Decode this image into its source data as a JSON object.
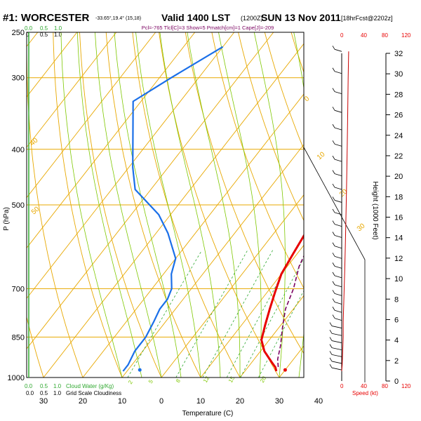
{
  "header": {
    "station": "#1: WORCESTER",
    "coords": "-33.65°,19.4° (15,18)",
    "valid": "Valid 1400 LST",
    "utc": "(1200Z)",
    "date": "SUN 13 Nov 2011",
    "run": "[18hrFcst@2202z]",
    "indices": "Pcl=-765 Tlcl[C]=3 Show=5 Pmatch[cm]=1 Cape[J]=-209"
  },
  "colors": {
    "isobar": "#e8a800",
    "dry_adiabat": "#e8a800",
    "moist_adiabat": "#7ec800",
    "mixing_ratio": "#2fa82f",
    "temperature": "#e80000",
    "dewpoint": "#1a6fe8",
    "parcel": "#7a0060",
    "wind": "#000000",
    "speed": "#c80000",
    "cloud": "#2fa82f"
  },
  "chart_data": {
    "type": "line",
    "title": "#1: WORCESTER",
    "xlabel": "Temperature (C)",
    "ylabel": "P (hPa)",
    "y2label": "Height (1000 Feet)",
    "xlim": [
      -40,
      40
    ],
    "ylim": [
      1000,
      250
    ],
    "yscale": "log",
    "grid": true,
    "pressure_ticks": [
      250,
      300,
      400,
      500,
      700,
      850,
      1000
    ],
    "temp_ticks": [
      30,
      20,
      10,
      0,
      10,
      20,
      30,
      40
    ],
    "temp_tick_values": [
      -30,
      -20,
      -10,
      0,
      10,
      20,
      30,
      40
    ],
    "height_ticks": [
      0,
      2,
      4,
      6,
      8,
      10,
      12,
      14,
      16,
      18,
      20,
      22,
      24,
      26,
      28,
      30,
      32
    ],
    "cloud_scale_top": [
      "0.0",
      "0.5",
      "1.0"
    ],
    "cloud_scale_labels": [
      "0.0",
      "0.5",
      "1.0",
      "Cloud Water (g/Kg)"
    ],
    "cloud_scale_top2": [
      "0",
      "0.5",
      "1.0"
    ],
    "grid_cloud_labels": [
      "0.0",
      "0.5",
      "1.0",
      "Grid Scale Cloudiness"
    ],
    "speed_ticks_top": [
      "0",
      "40",
      "80",
      "120"
    ],
    "speed_ticks_bottom": [
      "0",
      "40",
      "80",
      "120"
    ],
    "speed_label": "Speed (kt)",
    "dry_adiabat_labels": [
      "0",
      "10",
      "20",
      "30",
      "40",
      "50"
    ],
    "mixing_ratio_labels": [
      "2",
      "5",
      "8",
      "12",
      "15",
      "20"
    ],
    "series": [
      {
        "name": "Temperature",
        "points": [
          [
            265,
            16
          ],
          [
            283,
            17
          ],
          [
            310,
            18
          ],
          [
            350,
            18
          ],
          [
            400,
            15
          ],
          [
            450,
            12
          ],
          [
            500,
            9
          ],
          [
            560,
            8
          ],
          [
            610,
            9
          ],
          [
            660,
            10
          ],
          [
            710,
            12
          ],
          [
            760,
            14
          ],
          [
            810,
            16
          ],
          [
            860,
            18
          ],
          [
            900,
            21
          ],
          [
            940,
            25
          ],
          [
            960,
            27
          ],
          [
            975,
            28
          ]
        ]
      },
      {
        "name": "Dewpoint",
        "points": [
          [
            265,
            -50
          ],
          [
            300,
            -57
          ],
          [
            330,
            -62
          ],
          [
            430,
            -49
          ],
          [
            470,
            -44
          ],
          [
            520,
            -33
          ],
          [
            560,
            -27
          ],
          [
            620,
            -20
          ],
          [
            660,
            -18
          ],
          [
            700,
            -15
          ],
          [
            730,
            -14
          ],
          [
            760,
            -14
          ],
          [
            800,
            -13
          ],
          [
            850,
            -12
          ],
          [
            900,
            -12
          ],
          [
            950,
            -11
          ],
          [
            975,
            -11
          ]
        ]
      },
      {
        "name": "Parcel",
        "points": [
          [
            580,
            11
          ],
          [
            640,
            13
          ],
          [
            700,
            16
          ],
          [
            760,
            18
          ],
          [
            820,
            21
          ],
          [
            880,
            24
          ],
          [
            930,
            26
          ],
          [
            965,
            28
          ]
        ]
      }
    ],
    "surface_markers": [
      {
        "name": "dewpoint",
        "pressure": 970,
        "temperature": -7
      },
      {
        "name": "temperature",
        "pressure": 970,
        "temperature": 30
      }
    ],
    "wind_speed_profile": [
      [
        975,
        0
      ],
      [
        950,
        1
      ],
      [
        900,
        2
      ],
      [
        850,
        3
      ],
      [
        800,
        3
      ],
      [
        750,
        4
      ],
      [
        700,
        5
      ],
      [
        650,
        6
      ],
      [
        600,
        7
      ],
      [
        550,
        8
      ],
      [
        500,
        9
      ],
      [
        450,
        10
      ],
      [
        400,
        11
      ],
      [
        350,
        12
      ],
      [
        300,
        13
      ],
      [
        270,
        14
      ]
    ]
  }
}
